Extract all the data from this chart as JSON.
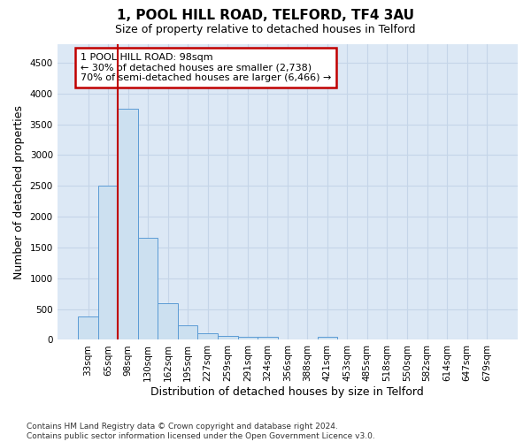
{
  "title": "1, POOL HILL ROAD, TELFORD, TF4 3AU",
  "subtitle": "Size of property relative to detached houses in Telford",
  "xlabel": "Distribution of detached houses by size in Telford",
  "ylabel": "Number of detached properties",
  "categories": [
    "33sqm",
    "65sqm",
    "98sqm",
    "130sqm",
    "162sqm",
    "195sqm",
    "227sqm",
    "259sqm",
    "291sqm",
    "324sqm",
    "356sqm",
    "388sqm",
    "421sqm",
    "453sqm",
    "485sqm",
    "518sqm",
    "550sqm",
    "582sqm",
    "614sqm",
    "647sqm",
    "679sqm"
  ],
  "values": [
    375,
    2500,
    3750,
    1650,
    600,
    240,
    110,
    65,
    50,
    50,
    0,
    0,
    55,
    0,
    0,
    0,
    0,
    0,
    0,
    0,
    0
  ],
  "bar_color": "#cce0f0",
  "bar_edge_color": "#5b9bd5",
  "highlight_bar_index": 2,
  "highlight_color": "#c00000",
  "annotation_text": "1 POOL HILL ROAD: 98sqm\n← 30% of detached houses are smaller (2,738)\n70% of semi-detached houses are larger (6,466) →",
  "annotation_box_color": "#ffffff",
  "annotation_box_edge": "#c00000",
  "ylim": [
    0,
    4800
  ],
  "yticks": [
    0,
    500,
    1000,
    1500,
    2000,
    2500,
    3000,
    3500,
    4000,
    4500
  ],
  "footer": "Contains HM Land Registry data © Crown copyright and database right 2024.\nContains public sector information licensed under the Open Government Licence v3.0.",
  "bg_color": "#ffffff",
  "plot_bg_color": "#dce8f5",
  "grid_color": "#c5d5e8",
  "title_fontsize": 11,
  "subtitle_fontsize": 9,
  "axis_label_fontsize": 9,
  "tick_fontsize": 7.5,
  "annotation_fontsize": 8,
  "footer_fontsize": 6.5
}
